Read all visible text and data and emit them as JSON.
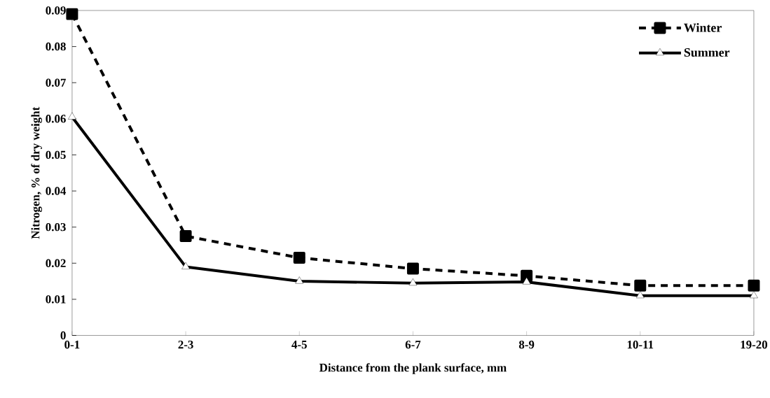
{
  "chart_data": {
    "type": "line",
    "xlabel": "Distance from the plank surface, mm",
    "ylabel": "Nitrogen, % of dry weight",
    "categories": [
      "0-1",
      "2-3",
      "4-5",
      "6-7",
      "8-9",
      "10-11",
      "19-20"
    ],
    "series": [
      {
        "name": "Winter",
        "color": "#000000",
        "marker": "square",
        "line_style": "dashed",
        "values": [
          0.089,
          0.0275,
          0.0215,
          0.0185,
          0.0165,
          0.0138,
          0.0138
        ]
      },
      {
        "name": "Summer",
        "color": "#000000",
        "marker": "triangle",
        "line_style": "solid",
        "values": [
          0.0605,
          0.019,
          0.015,
          0.0145,
          0.0148,
          0.011,
          0.011
        ]
      }
    ],
    "ylim": [
      0,
      0.09
    ],
    "yticks": [
      0,
      0.01,
      0.02,
      0.03,
      0.04,
      0.05,
      0.06,
      0.07,
      0.08,
      0.09
    ],
    "grid": false,
    "legend": "top right"
  }
}
